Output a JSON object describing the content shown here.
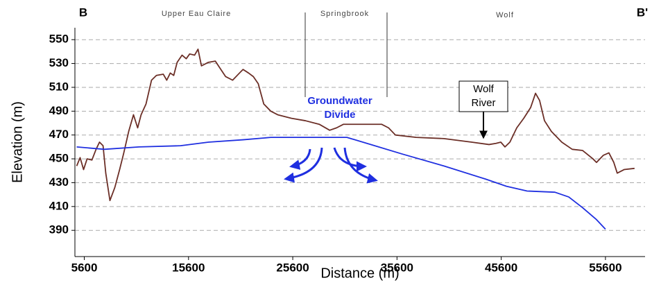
{
  "chart_data": {
    "type": "line",
    "xlabel": "Distance (m)",
    "ylabel": "Elevation (m)",
    "annotations": {
      "left_end": "B",
      "right_end": "B'",
      "upper_eau_claire": "Upper Eau Claire",
      "springbrook": "Springbrook",
      "wolf": "Wolf",
      "groundwater_divide": [
        "Groundwater",
        "Divide"
      ],
      "wolf_river": [
        "Wolf",
        "River"
      ]
    },
    "xlim": [
      4700,
      59400
    ],
    "ylim": [
      368,
      560
    ],
    "xticks": [
      5600,
      15600,
      25600,
      35600,
      45600,
      55600
    ],
    "yticks": [
      390,
      410,
      430,
      450,
      470,
      490,
      510,
      530,
      550
    ],
    "grid": true,
    "series": [
      {
        "color": "#6b2e26",
        "x": [
          4870,
          5200,
          5530,
          5870,
          6330,
          6730,
          7060,
          7400,
          7660,
          8060,
          8530,
          8990,
          9390,
          9860,
          10320,
          10720,
          11050,
          11520,
          12050,
          12520,
          13180,
          13510,
          13850,
          14180,
          14510,
          14980,
          15380,
          15710,
          16180,
          16510,
          16840,
          17510,
          18170,
          18700,
          19160,
          19830,
          20490,
          20830,
          21360,
          21820,
          22290,
          22820,
          23490,
          24150,
          25480,
          26810,
          28140,
          29140,
          29800,
          30470,
          32130,
          34120,
          34790,
          35450,
          37450,
          40110,
          42770,
          44430,
          45100,
          45560,
          45960,
          46430,
          47090,
          47760,
          48420,
          48890,
          49280,
          49750,
          50410,
          51410,
          52410,
          53410,
          54400,
          54740,
          55400,
          55930,
          56400,
          56730,
          57390,
          58390
        ],
        "values": [
          444,
          451,
          441,
          450,
          449,
          458,
          464,
          461,
          438,
          415,
          426,
          441,
          455,
          473,
          487,
          476,
          487,
          496,
          516,
          520,
          521,
          516,
          522,
          520,
          531,
          537,
          534,
          538,
          537,
          542,
          528,
          531,
          532,
          525,
          519,
          516,
          522,
          525,
          522,
          519,
          513,
          496,
          490,
          487,
          484,
          482,
          479,
          474,
          476,
          479,
          479,
          479,
          476,
          470,
          468,
          467,
          464,
          462,
          463,
          464,
          460,
          464,
          476,
          484,
          493,
          505,
          499,
          482,
          473,
          464,
          458,
          457,
          450,
          447,
          453,
          455,
          447,
          438,
          441,
          442
        ]
      },
      {
        "color": "#1f2fe0",
        "x": [
          4870,
          7530,
          10850,
          14840,
          17510,
          20830,
          23490,
          27480,
          30800,
          33460,
          36120,
          40110,
          44100,
          46100,
          48090,
          50750,
          52080,
          53410,
          54740,
          55600
        ],
        "values": [
          460,
          458,
          460,
          461,
          464,
          466,
          468,
          468,
          468,
          461,
          454,
          444,
          433,
          427,
          423,
          422,
          418,
          409,
          399,
          391
        ]
      }
    ]
  }
}
